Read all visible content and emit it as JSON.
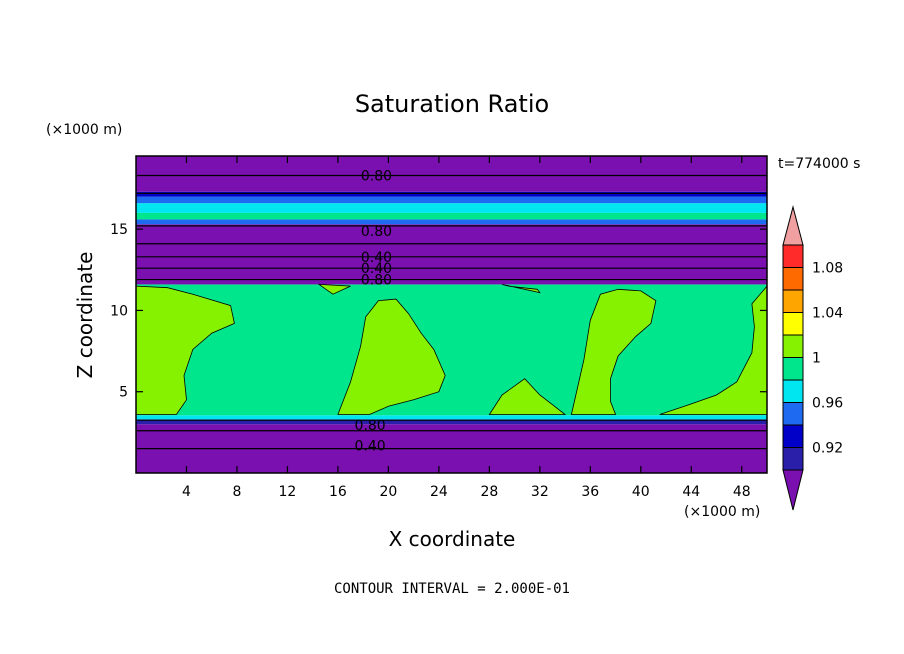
{
  "chart_data": {
    "type": "heatmap",
    "title": "Saturation Ratio",
    "xlabel": "X coordinate",
    "ylabel": "Z coordinate",
    "x_units": "(×1000 m)",
    "y_units": "(×1000 m)",
    "time_label": "t=774000 s",
    "footer": "CONTOUR INTERVAL = 2.000E-01",
    "xlim": [
      0,
      50
    ],
    "ylim": [
      0,
      19.5
    ],
    "x_ticks": [
      4,
      8,
      12,
      16,
      20,
      24,
      28,
      32,
      36,
      40,
      44,
      48
    ],
    "y_ticks": [
      5,
      10,
      15
    ],
    "x_tick_labels": [
      "4",
      "8",
      "12",
      "16",
      "20",
      "24",
      "28",
      "32",
      "36",
      "40",
      "44",
      "48"
    ],
    "y_tick_labels": [
      "5",
      "10",
      "15"
    ],
    "colorbar": {
      "levels": [
        0.92,
        0.96,
        1,
        1.04,
        1.08
      ],
      "labels": [
        "0.92",
        "0.96",
        "1",
        "1.04",
        "1.08"
      ],
      "colors": [
        "#7a10b0",
        "#2a1fa8",
        "#0000c8",
        "#1e6af0",
        "#00e6f0",
        "#00e68c",
        "#86f200",
        "#ffff00",
        "#ffa500",
        "#ff6a00",
        "#ff2a2a",
        "#f0a0a0"
      ]
    },
    "bands": [
      {
        "z0": 0,
        "z1": 3.0,
        "color": "#7a10b0"
      },
      {
        "z0": 3.0,
        "z1": 3.3,
        "color": "#2a1fa8"
      },
      {
        "z0": 3.3,
        "z1": 3.55,
        "color": "#00e6f0"
      },
      {
        "z0": 3.55,
        "z1": 11.6,
        "color": "#00e68c"
      },
      {
        "z0": 11.6,
        "z1": 15.3,
        "color": "#7a10b0"
      },
      {
        "z0": 15.3,
        "z1": 15.6,
        "color": "#1e6af0"
      },
      {
        "z0": 15.6,
        "z1": 16.0,
        "color": "#00e68c"
      },
      {
        "z0": 16.0,
        "z1": 16.6,
        "color": "#00e6f0"
      },
      {
        "z0": 16.6,
        "z1": 17.0,
        "color": "#1e6af0"
      },
      {
        "z0": 17.0,
        "z1": 17.3,
        "color": "#0000c8"
      },
      {
        "z0": 17.3,
        "z1": 19.5,
        "color": "#7a10b0"
      }
    ],
    "contour_lines": [
      1.5,
      2.6,
      3.25,
      11.9,
      12.6,
      13.3,
      14.1,
      15.2,
      17.2,
      18.3
    ],
    "contour_labels": [
      {
        "text": "0.80",
        "x": 17.5,
        "z": 18.3
      },
      {
        "text": "0.80",
        "x": 17.5,
        "z": 14.9
      },
      {
        "text": "0.40",
        "x": 17.5,
        "z": 13.3
      },
      {
        "text": "0.40",
        "x": 17.5,
        "z": 12.6
      },
      {
        "text": "0.80",
        "x": 17.5,
        "z": 11.9
      },
      {
        "text": "0.80",
        "x": 17.0,
        "z": 2.95
      },
      {
        "text": "0.40",
        "x": 17.0,
        "z": 1.7
      }
    ],
    "regions_above_one": [
      [
        [
          0,
          3.6
        ],
        [
          0,
          11.5
        ],
        [
          2.5,
          11.4
        ],
        [
          4.5,
          11.0
        ],
        [
          7.5,
          10.3
        ],
        [
          7.8,
          9.2
        ],
        [
          6.0,
          8.6
        ],
        [
          4.5,
          7.6
        ],
        [
          3.8,
          6.0
        ],
        [
          4.0,
          4.5
        ],
        [
          3.2,
          3.6
        ]
      ],
      [
        [
          16.0,
          3.6
        ],
        [
          17.0,
          5.6
        ],
        [
          17.8,
          7.8
        ],
        [
          18.2,
          9.6
        ],
        [
          19.2,
          10.6
        ],
        [
          20.6,
          10.7
        ],
        [
          21.6,
          9.8
        ],
        [
          22.6,
          8.6
        ],
        [
          23.6,
          7.6
        ],
        [
          24.5,
          6.0
        ],
        [
          24.0,
          5.0
        ],
        [
          22.0,
          4.5
        ],
        [
          20.0,
          4.1
        ],
        [
          18.5,
          3.6
        ]
      ],
      [
        [
          28.0,
          3.6
        ],
        [
          29.0,
          4.8
        ],
        [
          30.8,
          5.8
        ],
        [
          32.0,
          4.8
        ],
        [
          33.0,
          4.2
        ],
        [
          34.0,
          3.6
        ]
      ],
      [
        [
          29.0,
          11.6
        ],
        [
          32.0,
          11.1
        ],
        [
          31.8,
          11.3
        ],
        [
          29.5,
          11.5
        ]
      ],
      [
        [
          34.5,
          3.6
        ],
        [
          35.5,
          7.0
        ],
        [
          36.0,
          9.4
        ],
        [
          36.8,
          11.0
        ],
        [
          38.2,
          11.3
        ],
        [
          40.0,
          11.2
        ],
        [
          41.2,
          10.6
        ],
        [
          40.8,
          9.2
        ],
        [
          39.6,
          8.4
        ],
        [
          38.2,
          7.2
        ],
        [
          37.6,
          5.8
        ],
        [
          37.6,
          4.4
        ],
        [
          38.0,
          3.6
        ]
      ],
      [
        [
          41.5,
          3.6
        ],
        [
          43.8,
          4.2
        ],
        [
          46.0,
          4.8
        ],
        [
          47.6,
          5.6
        ],
        [
          48.8,
          7.4
        ],
        [
          49.0,
          9.0
        ],
        [
          48.8,
          10.4
        ],
        [
          50.0,
          11.5
        ],
        [
          50.0,
          3.6
        ]
      ],
      [
        [
          14.5,
          11.6
        ],
        [
          15.6,
          11.0
        ],
        [
          17.0,
          11.5
        ]
      ]
    ]
  }
}
